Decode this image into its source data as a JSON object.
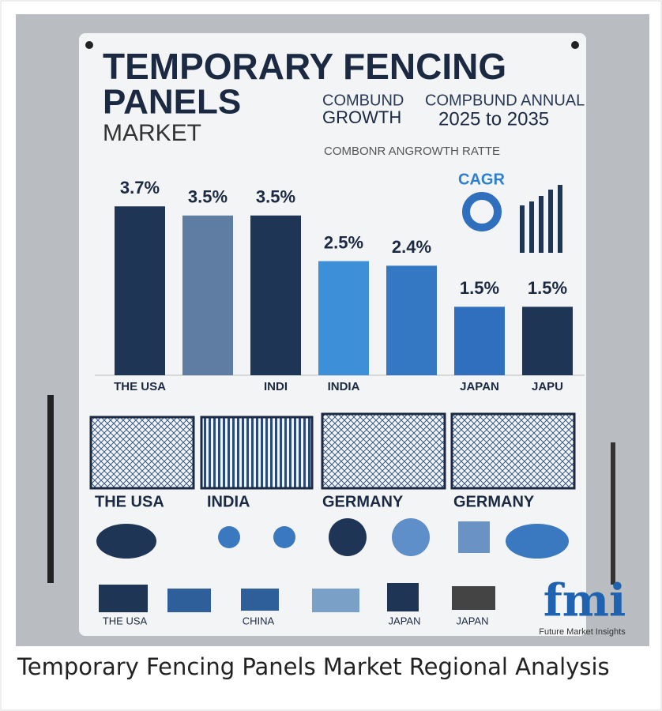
{
  "poster": {
    "title_line1": "TEMPORARY FENCING",
    "title_line2": "PANELS",
    "title_line3": "MARKET",
    "side_text1": "COMBUND",
    "side_text2": "GROWTH",
    "side_text3": "COMPBUND ANNUAL",
    "side_text4": "2025 to 2035",
    "subtitle": "COMBONR ANGROWTH RATTE",
    "cagr_label": "CAGR",
    "region_labels": [
      "THE USA",
      "INDIA",
      "GERMANY",
      "GERMANY"
    ],
    "bottom_labels": [
      "THE USA",
      "CHINA",
      "JAPAN",
      "JAPAN"
    ],
    "logo": "fmi",
    "logo_sub": "Future Market Insights"
  },
  "chart_data": {
    "type": "bar",
    "categories": [
      "THE USA",
      null,
      "INDI",
      "INDIA",
      null,
      "JAPAN",
      "JAPU"
    ],
    "values": [
      3.7,
      3.5,
      3.5,
      2.5,
      2.4,
      1.5,
      1.5
    ],
    "value_labels": [
      "3.7%",
      "3.5%",
      "3.5%",
      "2.5%",
      "2.4%",
      "1.5%",
      "1.5%"
    ],
    "colors": [
      "#1f3556",
      "#5f7da3",
      "#1f3556",
      "#3d8fd8",
      "#3478c4",
      "#2f6fbd",
      "#1f3556"
    ],
    "ylim": [
      0,
      4.5
    ]
  },
  "caption": "Temporary Fencing Panels Market Regional Analysis"
}
